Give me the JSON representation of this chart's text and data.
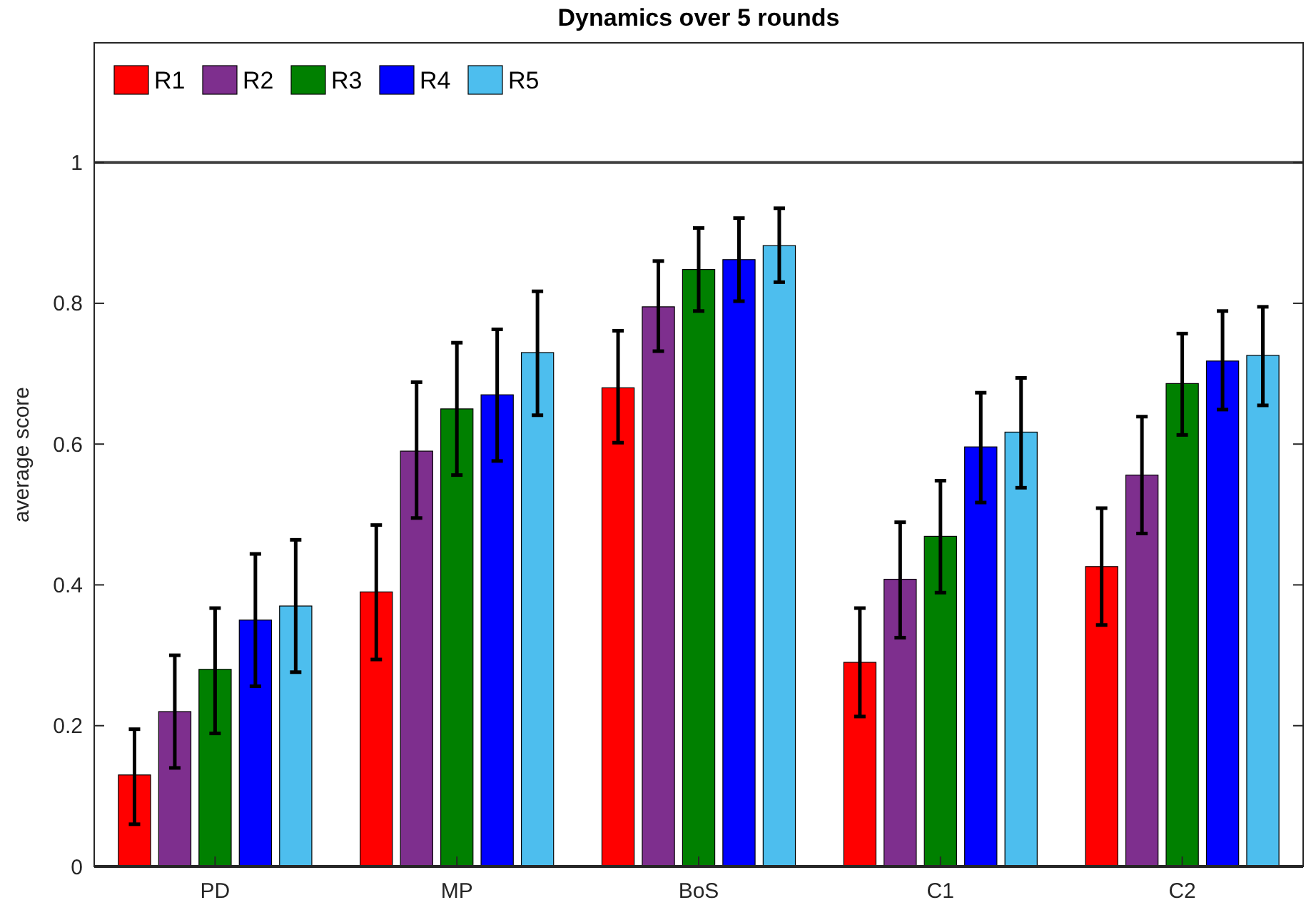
{
  "chart_data": {
    "type": "bar",
    "title": "Dynamics over 5 rounds",
    "ylabel": "average score",
    "categories": [
      "PD",
      "MP",
      "BoS",
      "C1",
      "C2"
    ],
    "series": [
      {
        "name": "R1",
        "color": "#ff0000",
        "values": [
          0.13,
          0.39,
          0.68,
          0.29,
          0.426
        ],
        "errors": [
          [
            0.06,
            0.195
          ],
          [
            0.294,
            0.485
          ],
          [
            0.602,
            0.761
          ],
          [
            0.213,
            0.367
          ],
          [
            0.343,
            0.509
          ]
        ]
      },
      {
        "name": "R2",
        "color": "#7e2f8e",
        "values": [
          0.22,
          0.59,
          0.795,
          0.408,
          0.556
        ],
        "errors": [
          [
            0.14,
            0.3
          ],
          [
            0.495,
            0.688
          ],
          [
            0.732,
            0.86
          ],
          [
            0.325,
            0.489
          ],
          [
            0.473,
            0.639
          ]
        ]
      },
      {
        "name": "R3",
        "color": "#008000",
        "values": [
          0.28,
          0.65,
          0.848,
          0.469,
          0.686
        ],
        "errors": [
          [
            0.189,
            0.367
          ],
          [
            0.556,
            0.744
          ],
          [
            0.789,
            0.907
          ],
          [
            0.389,
            0.548
          ],
          [
            0.613,
            0.757
          ]
        ]
      },
      {
        "name": "R4",
        "color": "#0000ff",
        "values": [
          0.35,
          0.67,
          0.862,
          0.596,
          0.718
        ],
        "errors": [
          [
            0.256,
            0.444
          ],
          [
            0.576,
            0.763
          ],
          [
            0.803,
            0.921
          ],
          [
            0.517,
            0.673
          ],
          [
            0.649,
            0.789
          ]
        ]
      },
      {
        "name": "R5",
        "color": "#4dbeee",
        "values": [
          0.37,
          0.73,
          0.882,
          0.617,
          0.726
        ],
        "errors": [
          [
            0.276,
            0.464
          ],
          [
            0.641,
            0.817
          ],
          [
            0.83,
            0.935
          ],
          [
            0.538,
            0.694
          ],
          [
            0.655,
            0.795
          ]
        ]
      }
    ],
    "ylim": [
      0,
      1.17
    ],
    "yticks": [
      0,
      0.2,
      0.4,
      0.6,
      0.8,
      1
    ],
    "ref_lines": [
      {
        "axis": "y",
        "value": 1,
        "color": "#404040"
      }
    ],
    "legend": "top left",
    "grid": false
  }
}
